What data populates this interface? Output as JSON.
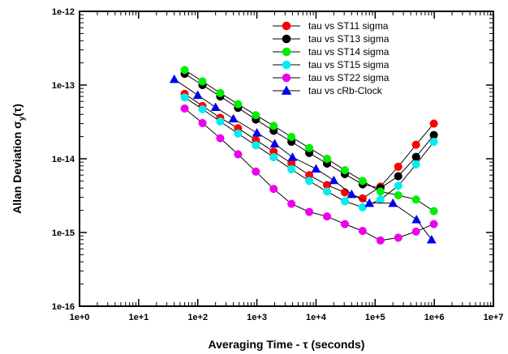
{
  "chart_data": {
    "type": "line",
    "xscale": "log",
    "yscale": "log",
    "xlim": [
      1,
      10000000
    ],
    "ylim": [
      1e-16,
      1e-12
    ],
    "xticks": [
      "1e+0",
      "1e+1",
      "1e+2",
      "1e+3",
      "1e+4",
      "1e+5",
      "1e+6",
      "1e+7"
    ],
    "yticks": [
      "1e-16",
      "1e-15",
      "1e-14",
      "1e-13",
      "1e-12"
    ],
    "xlabel": "Averaging Time - τ (seconds)",
    "ylabel_main": "Allan Deviation σ",
    "ylabel_sub": "y",
    "ylabel_tail": "(τ)",
    "grid": false,
    "legend_position": "top-right",
    "series": [
      {
        "name": "tau vs ST11 sigma",
        "color": "#ff0000",
        "marker": "circle",
        "x": [
          60,
          120,
          240,
          480,
          960,
          1920,
          3840,
          7680,
          15360,
          30720,
          61440,
          122880,
          245760,
          491520,
          983040
        ],
        "y": [
          7.6e-14,
          5.2e-14,
          3.6e-14,
          2.6e-14,
          1.8e-14,
          1.25e-14,
          8.7e-15,
          6e-15,
          4.4e-15,
          3.5e-15,
          2.9e-15,
          4.2e-15,
          7.8e-15,
          1.55e-14,
          3e-14
        ]
      },
      {
        "name": "tau vs ST13 sigma",
        "color": "#000000",
        "marker": "circle",
        "x": [
          60,
          120,
          240,
          480,
          960,
          1920,
          3840,
          7680,
          15360,
          30720,
          61440,
          122880,
          245760,
          491520,
          983040
        ],
        "y": [
          1.42e-13,
          1e-13,
          7e-14,
          4.9e-14,
          3.4e-14,
          2.4e-14,
          1.7e-14,
          1.2e-14,
          8.6e-15,
          6.2e-15,
          4.5e-15,
          4e-15,
          5.8e-15,
          1.06e-14,
          2.1e-14
        ]
      },
      {
        "name": "tau vs ST14 sigma",
        "color": "#00ee00",
        "marker": "circle",
        "x": [
          60,
          120,
          240,
          480,
          960,
          1920,
          3840,
          7680,
          15360,
          30720,
          61440,
          122880,
          245760,
          491520,
          983040
        ],
        "y": [
          1.6e-13,
          1.12e-13,
          7.8e-14,
          5.5e-14,
          3.9e-14,
          2.8e-14,
          1.98e-14,
          1.4e-14,
          1e-14,
          7e-15,
          5e-15,
          3.6e-15,
          3.2e-15,
          2.8e-15,
          1.95e-15
        ]
      },
      {
        "name": "tau vs ST15 sigma",
        "color": "#00eeee",
        "marker": "circle",
        "x": [
          60,
          120,
          240,
          480,
          960,
          1920,
          3840,
          7680,
          15360,
          30720,
          61440,
          122880,
          245760,
          491520,
          983040
        ],
        "y": [
          6.8e-14,
          4.7e-14,
          3.2e-14,
          2.2e-14,
          1.52e-14,
          1.05e-14,
          7.2e-15,
          5e-15,
          3.6e-15,
          2.65e-15,
          2.2e-15,
          2.8e-15,
          4.3e-15,
          8.4e-15,
          1.7e-14
        ]
      },
      {
        "name": "tau vs ST22 sigma",
        "color": "#ee00ee",
        "marker": "circle",
        "x": [
          60,
          120,
          240,
          480,
          960,
          1920,
          3840,
          7680,
          15360,
          30720,
          61440,
          122880,
          245760,
          491520,
          983040
        ],
        "y": [
          4.8e-14,
          3.05e-14,
          1.9e-14,
          1.15e-14,
          6.7e-15,
          3.9e-15,
          2.45e-15,
          1.9e-15,
          1.65e-15,
          1.3e-15,
          1.05e-15,
          7.8e-16,
          8.5e-16,
          1.03e-15,
          1.3e-15
        ]
      },
      {
        "name": "tau vs cRb-Clock",
        "color": "#0000ee",
        "marker": "triangle",
        "x": [
          40,
          100,
          200,
          400,
          1000,
          2000,
          4000,
          10000,
          20000,
          40000,
          80000,
          200000,
          500000,
          900000
        ],
        "y": [
          1.2e-13,
          7.3e-14,
          5e-14,
          3.5e-14,
          2.25e-14,
          1.6e-14,
          1.05e-14,
          7.3e-15,
          5.1e-15,
          3.3e-15,
          2.5e-15,
          2.5e-15,
          1.5e-15,
          8e-16
        ]
      }
    ]
  }
}
